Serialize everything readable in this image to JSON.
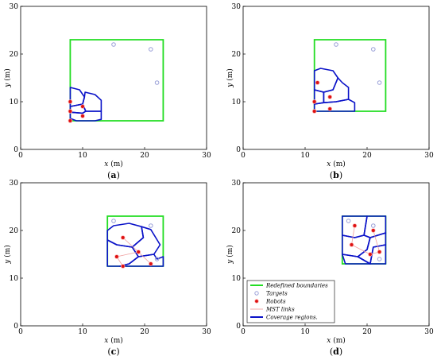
{
  "colors": {
    "boundary": "#22dd22",
    "target": "#9aa0d8",
    "robot_fill": "#dd1111",
    "robot_edge": "#ffb0b0",
    "mst": "#f0a0a0",
    "region": "#0a12c8"
  },
  "chart_data": [
    {
      "type": "scatter",
      "caption": "(a)",
      "xlabel": "x (m)",
      "ylabel": "y (m)",
      "xlim": [
        0,
        30
      ],
      "ylim": [
        0,
        30
      ],
      "xticks": [
        0,
        10,
        20,
        30
      ],
      "yticks": [
        0,
        10,
        20,
        30
      ],
      "boundary": [
        [
          8,
          6
        ],
        [
          23,
          6
        ],
        [
          23,
          23
        ],
        [
          8,
          23
        ]
      ],
      "targets": [
        [
          15,
          22
        ],
        [
          21,
          21
        ],
        [
          22,
          14
        ]
      ],
      "robots": [
        [
          8,
          10
        ],
        [
          10,
          9
        ],
        [
          8,
          8
        ],
        [
          10,
          7
        ],
        [
          8,
          6
        ]
      ],
      "mst_links": [],
      "regions": [
        [
          [
            8,
            13
          ],
          [
            9.5,
            12.5
          ],
          [
            10.3,
            11
          ],
          [
            10,
            9.5
          ],
          [
            8,
            9
          ]
        ],
        [
          [
            10.3,
            11
          ],
          [
            10.4,
            12
          ],
          [
            12,
            11.5
          ],
          [
            13,
            10.3
          ],
          [
            13,
            8
          ],
          [
            10.5,
            8
          ],
          [
            10,
            9.5
          ]
        ],
        [
          [
            8,
            9
          ],
          [
            10,
            9.5
          ],
          [
            10.5,
            8
          ],
          [
            10,
            7.6
          ],
          [
            8,
            7.8
          ]
        ],
        [
          [
            8,
            7.8
          ],
          [
            10,
            7.6
          ],
          [
            10.5,
            8
          ],
          [
            13,
            8
          ],
          [
            13,
            6.3
          ],
          [
            12,
            6
          ],
          [
            9,
            6
          ],
          [
            8,
            6.5
          ]
        ]
      ]
    },
    {
      "type": "scatter",
      "caption": "(b)",
      "xlabel": "x (m)",
      "ylabel": "y (m)",
      "xlim": [
        0,
        30
      ],
      "ylim": [
        0,
        30
      ],
      "xticks": [
        0,
        10,
        20,
        30
      ],
      "yticks": [
        0,
        10,
        20,
        30
      ],
      "boundary": [
        [
          11.5,
          8
        ],
        [
          23,
          8
        ],
        [
          23,
          23
        ],
        [
          11.5,
          23
        ]
      ],
      "targets": [
        [
          15,
          22
        ],
        [
          21,
          21
        ],
        [
          22,
          14
        ]
      ],
      "robots": [
        [
          12,
          14
        ],
        [
          14,
          11
        ],
        [
          11.5,
          10
        ],
        [
          14,
          8.5
        ],
        [
          11.5,
          8
        ]
      ],
      "mst_links": [],
      "regions": [
        [
          [
            11.5,
            16.5
          ],
          [
            12.5,
            17
          ],
          [
            14.5,
            16.5
          ],
          [
            15.3,
            15
          ],
          [
            14.5,
            12.5
          ],
          [
            13,
            12
          ],
          [
            11.5,
            12.5
          ]
        ],
        [
          [
            14.5,
            12.5
          ],
          [
            15.3,
            15
          ],
          [
            16,
            14
          ],
          [
            17,
            13
          ],
          [
            17,
            10.5
          ],
          [
            15,
            10
          ],
          [
            13,
            9.8
          ],
          [
            13,
            12
          ]
        ],
        [
          [
            11.5,
            12.5
          ],
          [
            13,
            12
          ],
          [
            13,
            9.8
          ],
          [
            11.5,
            9.5
          ]
        ],
        [
          [
            11.5,
            9.5
          ],
          [
            13,
            9.8
          ],
          [
            15,
            10
          ],
          [
            17,
            10.5
          ],
          [
            18,
            9.8
          ],
          [
            18,
            8
          ],
          [
            11.5,
            8
          ]
        ]
      ]
    },
    {
      "type": "scatter",
      "caption": "(c)",
      "xlabel": "x (m)",
      "ylabel": "y (m)",
      "xlim": [
        0,
        30
      ],
      "ylim": [
        0,
        30
      ],
      "xticks": [
        0,
        10,
        20,
        30
      ],
      "yticks": [
        0,
        10,
        20,
        30
      ],
      "boundary": [
        [
          14,
          12.5
        ],
        [
          23,
          12.5
        ],
        [
          23,
          23
        ],
        [
          14,
          23
        ]
      ],
      "targets": [
        [
          15,
          22
        ],
        [
          21,
          21
        ],
        [
          22,
          14
        ]
      ],
      "robots": [
        [
          16.5,
          18.5
        ],
        [
          19,
          15.5
        ],
        [
          15.5,
          14.5
        ],
        [
          16.5,
          12.5
        ],
        [
          21,
          13
        ]
      ],
      "mst_links": [
        [
          [
            16.5,
            18.5
          ],
          [
            19,
            15.5
          ]
        ],
        [
          [
            19,
            15.5
          ],
          [
            15.5,
            14.5
          ]
        ],
        [
          [
            15.5,
            14.5
          ],
          [
            16.5,
            12.5
          ]
        ],
        [
          [
            19,
            15.5
          ],
          [
            21,
            13
          ]
        ]
      ],
      "regions": [
        [
          [
            14,
            20
          ],
          [
            15,
            21
          ],
          [
            17.5,
            21.5
          ],
          [
            19.5,
            20.8
          ],
          [
            19.8,
            18.5
          ],
          [
            18,
            16.5
          ],
          [
            15.5,
            17
          ],
          [
            14,
            18
          ]
        ],
        [
          [
            19.5,
            20.8
          ],
          [
            21,
            20.2
          ],
          [
            22.5,
            17
          ],
          [
            21.5,
            15
          ],
          [
            19,
            14.5
          ],
          [
            18,
            16.5
          ],
          [
            19.8,
            18.5
          ]
        ],
        [
          [
            14,
            18
          ],
          [
            15.5,
            17
          ],
          [
            18,
            16.5
          ],
          [
            19,
            14.5
          ],
          [
            17.5,
            13
          ],
          [
            16,
            12.5
          ],
          [
            14,
            12.5
          ]
        ],
        [
          [
            16,
            12.5
          ],
          [
            17.5,
            13
          ],
          [
            19,
            14.5
          ],
          [
            21.5,
            15
          ],
          [
            22,
            14
          ],
          [
            23,
            14.5
          ],
          [
            23,
            12.5
          ]
        ]
      ]
    },
    {
      "type": "scatter",
      "caption": "(d)",
      "xlabel": "x (m)",
      "ylabel": "y (m)",
      "xlim": [
        0,
        30
      ],
      "ylim": [
        0,
        30
      ],
      "xticks": [
        0,
        10,
        20,
        30
      ],
      "yticks": [
        0,
        10,
        20,
        30
      ],
      "boundary": [
        [
          16,
          13
        ],
        [
          23,
          13
        ],
        [
          23,
          23
        ],
        [
          16,
          23
        ]
      ],
      "targets": [
        [
          17,
          22
        ],
        [
          21,
          21
        ],
        [
          22,
          14
        ]
      ],
      "robots": [
        [
          18,
          21
        ],
        [
          17.5,
          17
        ],
        [
          20.5,
          15
        ],
        [
          21,
          20
        ],
        [
          22,
          15.5
        ]
      ],
      "mst_links": [
        [
          [
            18,
            21
          ],
          [
            17.5,
            17
          ]
        ],
        [
          [
            17.5,
            17
          ],
          [
            20.5,
            15
          ]
        ],
        [
          [
            20.5,
            15
          ],
          [
            22,
            15.5
          ]
        ],
        [
          [
            21,
            20
          ],
          [
            22,
            15.5
          ]
        ]
      ],
      "regions": [
        [
          [
            16,
            23
          ],
          [
            20,
            23
          ],
          [
            19.5,
            19
          ],
          [
            18,
            18.5
          ],
          [
            16,
            19
          ]
        ],
        [
          [
            20,
            23
          ],
          [
            23,
            23
          ],
          [
            23,
            19.5
          ],
          [
            20.5,
            18.5
          ],
          [
            19.5,
            19
          ]
        ],
        [
          [
            16,
            19
          ],
          [
            18,
            18.5
          ],
          [
            19.5,
            19
          ],
          [
            20.5,
            18.5
          ],
          [
            20,
            16
          ],
          [
            18.5,
            14.5
          ],
          [
            16,
            15
          ]
        ],
        [
          [
            18.5,
            14.5
          ],
          [
            20,
            16
          ],
          [
            20.5,
            18.5
          ],
          [
            23,
            19.5
          ],
          [
            23,
            17
          ],
          [
            21,
            16.5
          ],
          [
            20.5,
            13
          ]
        ],
        [
          [
            16,
            15
          ],
          [
            18.5,
            14.5
          ],
          [
            20.5,
            13
          ],
          [
            16.5,
            13
          ]
        ],
        [
          [
            20.5,
            13
          ],
          [
            21,
            16.5
          ],
          [
            23,
            17
          ],
          [
            23,
            13
          ]
        ]
      ],
      "legend": {
        "placement": "bottom-right",
        "entries": [
          {
            "label": "Redefined boundaries",
            "kind": "boundary"
          },
          {
            "label": "Targets",
            "kind": "target"
          },
          {
            "label": "Robots",
            "kind": "robot"
          },
          {
            "label": "MST links",
            "kind": "mst"
          },
          {
            "label": "Coverage regions.",
            "kind": "region"
          }
        ]
      }
    }
  ]
}
